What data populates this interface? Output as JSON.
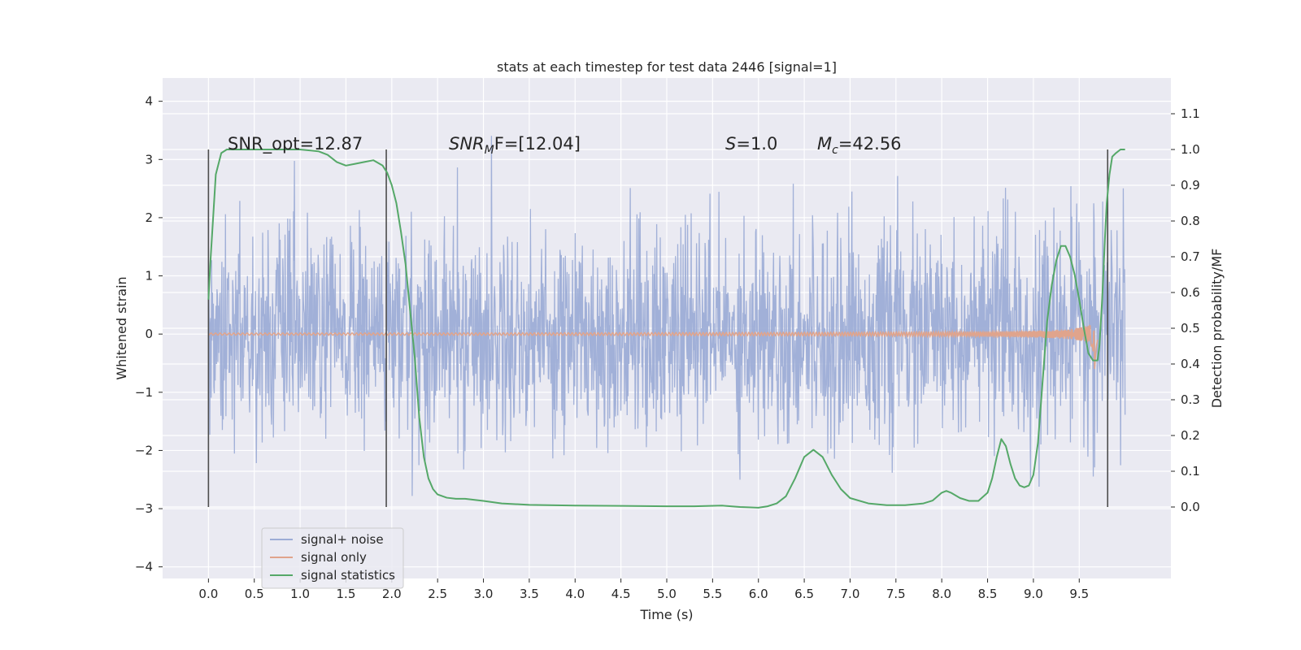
{
  "chart_data": {
    "type": "line",
    "title": "stats at each timestep for test data 2446 [signal=1]",
    "xlabel": "Time (s)",
    "ylabel": "Whitened strain",
    "y2label": "Detection probability/MF",
    "xlim": [
      -0.5,
      10.5
    ],
    "ylim": [
      -4.2,
      4.4
    ],
    "y2lim": [
      -0.2,
      1.2
    ],
    "xticks": [
      0.0,
      0.5,
      1.0,
      1.5,
      2.0,
      2.5,
      3.0,
      3.5,
      4.0,
      4.5,
      5.0,
      5.5,
      6.0,
      6.5,
      7.0,
      7.5,
      8.0,
      8.5,
      9.0,
      9.5
    ],
    "xtick_labels": [
      "0.0",
      "0.5",
      "1.0",
      "1.5",
      "2.0",
      "2.5",
      "3.0",
      "3.5",
      "4.0",
      "4.5",
      "5.0",
      "5.5",
      "6.0",
      "6.5",
      "7.0",
      "7.5",
      "8.0",
      "8.5",
      "9.0",
      "9.5"
    ],
    "yticks": [
      -4,
      -3,
      -2,
      -1,
      0,
      1,
      2,
      3,
      4
    ],
    "ytick_labels": [
      "−4",
      "−3",
      "−2",
      "−1",
      "0",
      "1",
      "2",
      "3",
      "4"
    ],
    "y2ticks": [
      0.0,
      0.1,
      0.2,
      0.3,
      0.4,
      0.5,
      0.6,
      0.7,
      0.8,
      0.9,
      1.0,
      1.1
    ],
    "y2tick_labels": [
      "0.0",
      "0.1",
      "0.2",
      "0.3",
      "0.4",
      "0.5",
      "0.6",
      "0.7",
      "0.8",
      "0.9",
      "1.0",
      "1.1"
    ],
    "grid": true,
    "legend_position": "lower-left",
    "annotations": {
      "snr_opt": "SNR_opt=12.87",
      "snr_mf_base": "SNR",
      "snr_mf_sub": "M",
      "snr_mf_tail": "F=[12.04]",
      "s_var": "S",
      "s_tail": "=1.0",
      "mc_base": "M",
      "mc_sub": "c",
      "mc_tail": "=42.56"
    },
    "window_markers_x": [
      0.0,
      1.94,
      9.81
    ],
    "window_markers_range": [
      0.0,
      1.0
    ],
    "series": [
      {
        "name": "signal+ noise",
        "color": "#9dadd6",
        "kind": "noise",
        "x_range": [
          0.0,
          10.0
        ],
        "amplitude_std": 0.9
      },
      {
        "name": "signal only",
        "color": "#e0a48c",
        "kind": "chirp",
        "x_range": [
          0.0,
          9.7
        ],
        "merger_time": 9.67
      },
      {
        "name": "signal statistics",
        "color": "#55a868",
        "kind": "curve",
        "axis": "right",
        "x": [
          0.0,
          0.02,
          0.08,
          0.14,
          0.2,
          0.4,
          0.7,
          1.0,
          1.2,
          1.3,
          1.4,
          1.5,
          1.6,
          1.7,
          1.8,
          1.9,
          1.95,
          2.0,
          2.05,
          2.1,
          2.15,
          2.2,
          2.25,
          2.3,
          2.35,
          2.4,
          2.45,
          2.5,
          2.6,
          2.7,
          2.8,
          3.0,
          3.2,
          3.5,
          4.0,
          4.5,
          5.0,
          5.3,
          5.6,
          5.8,
          6.0,
          6.1,
          6.2,
          6.3,
          6.4,
          6.5,
          6.6,
          6.7,
          6.8,
          6.9,
          7.0,
          7.2,
          7.4,
          7.6,
          7.8,
          7.9,
          8.0,
          8.05,
          8.1,
          8.2,
          8.3,
          8.4,
          8.5,
          8.55,
          8.6,
          8.65,
          8.7,
          8.75,
          8.8,
          8.85,
          8.9,
          8.95,
          9.0,
          9.05,
          9.1,
          9.15,
          9.2,
          9.25,
          9.3,
          9.35,
          9.4,
          9.45,
          9.5,
          9.55,
          9.6,
          9.65,
          9.7,
          9.72,
          9.75,
          9.78,
          9.8,
          9.83,
          9.86,
          9.9,
          9.95,
          10.0
        ],
        "y": [
          0.58,
          0.68,
          0.93,
          0.99,
          1.0,
          1.0,
          1.0,
          1.0,
          0.995,
          0.985,
          0.965,
          0.955,
          0.96,
          0.965,
          0.97,
          0.955,
          0.935,
          0.9,
          0.85,
          0.77,
          0.68,
          0.55,
          0.42,
          0.25,
          0.14,
          0.08,
          0.05,
          0.035,
          0.026,
          0.023,
          0.023,
          0.017,
          0.01,
          0.006,
          0.004,
          0.003,
          0.002,
          0.002,
          0.004,
          0.0,
          -0.002,
          0.002,
          0.01,
          0.03,
          0.08,
          0.14,
          0.16,
          0.14,
          0.09,
          0.05,
          0.025,
          0.01,
          0.005,
          0.005,
          0.01,
          0.018,
          0.04,
          0.045,
          0.04,
          0.025,
          0.017,
          0.017,
          0.04,
          0.08,
          0.14,
          0.19,
          0.17,
          0.12,
          0.08,
          0.06,
          0.055,
          0.06,
          0.09,
          0.18,
          0.35,
          0.52,
          0.62,
          0.69,
          0.73,
          0.73,
          0.7,
          0.65,
          0.58,
          0.5,
          0.43,
          0.41,
          0.41,
          0.45,
          0.58,
          0.75,
          0.85,
          0.93,
          0.98,
          0.99,
          1.0,
          1.0
        ]
      }
    ]
  }
}
